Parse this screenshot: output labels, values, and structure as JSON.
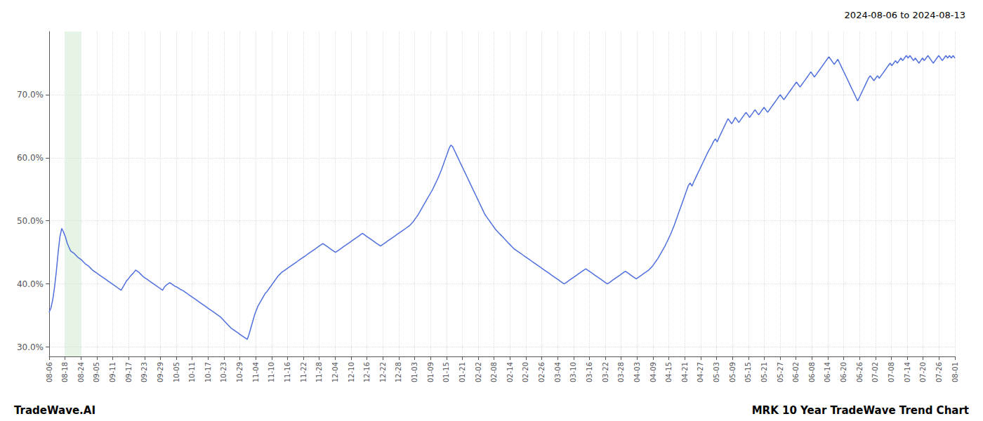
{
  "chart_data": {
    "type": "line",
    "title": "2024-08-06 to 2024-08-13",
    "annotations": [
      "TradeWave.AI",
      "MRK 10 Year TradeWave Trend Chart"
    ],
    "values": [
      0.355,
      0.362,
      0.375,
      0.395,
      0.42,
      0.45,
      0.475,
      0.488,
      0.482,
      0.475,
      0.465,
      0.458,
      0.452,
      0.45,
      0.448,
      0.445,
      0.442,
      0.44,
      0.438,
      0.435,
      0.432,
      0.43,
      0.428,
      0.425,
      0.422,
      0.42,
      0.418,
      0.416,
      0.414,
      0.412,
      0.41,
      0.408,
      0.406,
      0.404,
      0.402,
      0.4,
      0.398,
      0.396,
      0.394,
      0.392,
      0.39,
      0.395,
      0.4,
      0.405,
      0.408,
      0.412,
      0.415,
      0.418,
      0.422,
      0.42,
      0.418,
      0.415,
      0.412,
      0.41,
      0.408,
      0.406,
      0.404,
      0.402,
      0.4,
      0.398,
      0.396,
      0.394,
      0.392,
      0.39,
      0.395,
      0.398,
      0.4,
      0.402,
      0.4,
      0.398,
      0.396,
      0.395,
      0.393,
      0.391,
      0.39,
      0.388,
      0.386,
      0.384,
      0.382,
      0.38,
      0.378,
      0.376,
      0.374,
      0.372,
      0.37,
      0.368,
      0.366,
      0.364,
      0.362,
      0.36,
      0.358,
      0.356,
      0.354,
      0.352,
      0.35,
      0.348,
      0.345,
      0.342,
      0.339,
      0.336,
      0.333,
      0.33,
      0.328,
      0.326,
      0.324,
      0.322,
      0.32,
      0.318,
      0.316,
      0.314,
      0.312,
      0.32,
      0.33,
      0.34,
      0.35,
      0.358,
      0.365,
      0.37,
      0.375,
      0.38,
      0.385,
      0.388,
      0.392,
      0.396,
      0.4,
      0.404,
      0.408,
      0.412,
      0.415,
      0.418,
      0.42,
      0.422,
      0.424,
      0.426,
      0.428,
      0.43,
      0.432,
      0.434,
      0.436,
      0.438,
      0.44,
      0.442,
      0.444,
      0.446,
      0.448,
      0.45,
      0.452,
      0.454,
      0.456,
      0.458,
      0.46,
      0.462,
      0.464,
      0.462,
      0.46,
      0.458,
      0.456,
      0.454,
      0.452,
      0.45,
      0.452,
      0.454,
      0.456,
      0.458,
      0.46,
      0.462,
      0.464,
      0.466,
      0.468,
      0.47,
      0.472,
      0.474,
      0.476,
      0.478,
      0.48,
      0.478,
      0.476,
      0.474,
      0.472,
      0.47,
      0.468,
      0.466,
      0.464,
      0.462,
      0.46,
      0.462,
      0.464,
      0.466,
      0.468,
      0.47,
      0.472,
      0.474,
      0.476,
      0.478,
      0.48,
      0.482,
      0.484,
      0.486,
      0.488,
      0.49,
      0.492,
      0.495,
      0.498,
      0.502,
      0.506,
      0.51,
      0.515,
      0.52,
      0.525,
      0.53,
      0.535,
      0.54,
      0.545,
      0.55,
      0.556,
      0.562,
      0.568,
      0.575,
      0.582,
      0.59,
      0.598,
      0.606,
      0.614,
      0.62,
      0.618,
      0.612,
      0.606,
      0.6,
      0.594,
      0.588,
      0.582,
      0.576,
      0.57,
      0.564,
      0.558,
      0.552,
      0.546,
      0.54,
      0.534,
      0.528,
      0.522,
      0.516,
      0.51,
      0.506,
      0.502,
      0.498,
      0.494,
      0.49,
      0.486,
      0.483,
      0.48,
      0.477,
      0.474,
      0.471,
      0.468,
      0.465,
      0.462,
      0.459,
      0.456,
      0.454,
      0.452,
      0.45,
      0.448,
      0.446,
      0.444,
      0.442,
      0.44,
      0.438,
      0.436,
      0.434,
      0.432,
      0.43,
      0.428,
      0.426,
      0.424,
      0.422,
      0.42,
      0.418,
      0.416,
      0.414,
      0.412,
      0.41,
      0.408,
      0.406,
      0.404,
      0.402,
      0.4,
      0.402,
      0.404,
      0.406,
      0.408,
      0.41,
      0.412,
      0.414,
      0.416,
      0.418,
      0.42,
      0.422,
      0.424,
      0.422,
      0.42,
      0.418,
      0.416,
      0.414,
      0.412,
      0.41,
      0.408,
      0.406,
      0.404,
      0.402,
      0.4,
      0.402,
      0.404,
      0.406,
      0.408,
      0.41,
      0.412,
      0.414,
      0.416,
      0.418,
      0.42,
      0.418,
      0.416,
      0.414,
      0.412,
      0.41,
      0.408,
      0.41,
      0.412,
      0.414,
      0.416,
      0.418,
      0.42,
      0.422,
      0.425,
      0.428,
      0.432,
      0.436,
      0.44,
      0.445,
      0.45,
      0.455,
      0.46,
      0.466,
      0.472,
      0.478,
      0.485,
      0.492,
      0.5,
      0.508,
      0.516,
      0.524,
      0.532,
      0.54,
      0.548,
      0.556,
      0.56,
      0.555,
      0.562,
      0.568,
      0.574,
      0.58,
      0.586,
      0.592,
      0.598,
      0.604,
      0.61,
      0.615,
      0.62,
      0.626,
      0.63,
      0.625,
      0.632,
      0.638,
      0.644,
      0.65,
      0.656,
      0.662,
      0.658,
      0.654,
      0.658,
      0.664,
      0.66,
      0.656,
      0.66,
      0.664,
      0.668,
      0.672,
      0.668,
      0.664,
      0.668,
      0.672,
      0.676,
      0.672,
      0.668,
      0.672,
      0.676,
      0.68,
      0.676,
      0.672,
      0.676,
      0.68,
      0.684,
      0.688,
      0.692,
      0.696,
      0.7,
      0.696,
      0.692,
      0.696,
      0.7,
      0.704,
      0.708,
      0.712,
      0.716,
      0.72,
      0.716,
      0.712,
      0.716,
      0.72,
      0.724,
      0.728,
      0.732,
      0.736,
      0.732,
      0.728,
      0.732,
      0.736,
      0.74,
      0.744,
      0.748,
      0.752,
      0.756,
      0.76,
      0.756,
      0.752,
      0.748,
      0.752,
      0.756,
      0.75,
      0.744,
      0.738,
      0.732,
      0.726,
      0.72,
      0.714,
      0.708,
      0.702,
      0.696,
      0.69,
      0.696,
      0.702,
      0.708,
      0.714,
      0.72,
      0.726,
      0.73,
      0.726,
      0.722,
      0.726,
      0.73,
      0.726,
      0.73,
      0.734,
      0.738,
      0.742,
      0.746,
      0.75,
      0.746,
      0.75,
      0.754,
      0.75,
      0.754,
      0.758,
      0.754,
      0.758,
      0.762,
      0.758,
      0.762,
      0.758,
      0.754,
      0.758,
      0.754,
      0.75,
      0.754,
      0.758,
      0.754,
      0.758,
      0.762,
      0.758,
      0.754,
      0.75,
      0.754,
      0.758,
      0.762,
      0.758,
      0.754,
      0.758,
      0.762,
      0.758,
      0.762,
      0.758,
      0.762,
      0.758
    ],
    "xlim": [
      0,
      503
    ],
    "xticks": [
      {
        "value": 0,
        "label": "08-06"
      },
      {
        "value": 8.824561,
        "label": "08-18"
      },
      {
        "value": 17.649123,
        "label": "08-24"
      },
      {
        "value": 26.473684,
        "label": "09-05"
      },
      {
        "value": 35.298246,
        "label": "09-11"
      },
      {
        "value": 44.122807,
        "label": "09-17"
      },
      {
        "value": 52.947368,
        "label": "09-23"
      },
      {
        "value": 61.77193,
        "label": "09-29"
      },
      {
        "value": 70.596491,
        "label": "10-05"
      },
      {
        "value": 79.421053,
        "label": "10-11"
      },
      {
        "value": 88.245614,
        "label": "10-17"
      },
      {
        "value": 97.070175,
        "label": "10-23"
      },
      {
        "value": 105.894737,
        "label": "10-29"
      },
      {
        "value": 114.719298,
        "label": "11-04"
      },
      {
        "value": 123.54386,
        "label": "11-10"
      },
      {
        "value": 132.368421,
        "label": "11-16"
      },
      {
        "value": 141.192982,
        "label": "11-22"
      },
      {
        "value": 150.017544,
        "label": "11-28"
      },
      {
        "value": 158.842105,
        "label": "12-04"
      },
      {
        "value": 167.666667,
        "label": "12-10"
      },
      {
        "value": 176.491228,
        "label": "12-16"
      },
      {
        "value": 185.315789,
        "label": "12-22"
      },
      {
        "value": 194.140351,
        "label": "12-28"
      },
      {
        "value": 202.964912,
        "label": "01-03"
      },
      {
        "value": 211.789474,
        "label": "01-09"
      },
      {
        "value": 220.614035,
        "label": "01-15"
      },
      {
        "value": 229.438596,
        "label": "01-21"
      },
      {
        "value": 238.263158,
        "label": "02-02"
      },
      {
        "value": 247.087719,
        "label": "02-08"
      },
      {
        "value": 255.912281,
        "label": "02-14"
      },
      {
        "value": 264.736842,
        "label": "02-20"
      },
      {
        "value": 273.561404,
        "label": "02-26"
      },
      {
        "value": 282.385965,
        "label": "03-04"
      },
      {
        "value": 291.210526,
        "label": "03-10"
      },
      {
        "value": 300.035088,
        "label": "03-16"
      },
      {
        "value": 308.859649,
        "label": "03-22"
      },
      {
        "value": 317.684211,
        "label": "03-28"
      },
      {
        "value": 326.508772,
        "label": "04-03"
      },
      {
        "value": 335.333333,
        "label": "04-09"
      },
      {
        "value": 344.157895,
        "label": "04-15"
      },
      {
        "value": 352.982456,
        "label": "04-21"
      },
      {
        "value": 361.807018,
        "label": "04-27"
      },
      {
        "value": 370.631579,
        "label": "05-03"
      },
      {
        "value": 379.45614,
        "label": "05-09"
      },
      {
        "value": 388.280702,
        "label": "05-15"
      },
      {
        "value": 397.105263,
        "label": "05-21"
      },
      {
        "value": 405.929825,
        "label": "05-27"
      },
      {
        "value": 414.754386,
        "label": "06-02"
      },
      {
        "value": 423.578947,
        "label": "06-08"
      },
      {
        "value": 432.403509,
        "label": "06-14"
      },
      {
        "value": 441.22807,
        "label": "06-20"
      },
      {
        "value": 450.052632,
        "label": "06-26"
      },
      {
        "value": 458.877193,
        "label": "07-02"
      },
      {
        "value": 467.701754,
        "label": "07-08"
      },
      {
        "value": 476.526316,
        "label": "07-14"
      },
      {
        "value": 485.350877,
        "label": "07-20"
      },
      {
        "value": 494.175439,
        "label": "07-26"
      },
      {
        "value": 503,
        "label": "08-01"
      }
    ],
    "ylim": [
      0.285,
      0.8
    ],
    "yticks": [
      {
        "value": 0.3,
        "label": "30.0%"
      },
      {
        "value": 0.4,
        "label": "40.0%"
      },
      {
        "value": 0.5,
        "label": "50.0%"
      },
      {
        "value": 0.6,
        "label": "60.0%"
      },
      {
        "value": 0.7,
        "label": "70.0%"
      }
    ],
    "grid": true,
    "shaded_region": {
      "from": 8.824561,
      "to": 17.649123,
      "color": "#d6ecd6"
    }
  }
}
